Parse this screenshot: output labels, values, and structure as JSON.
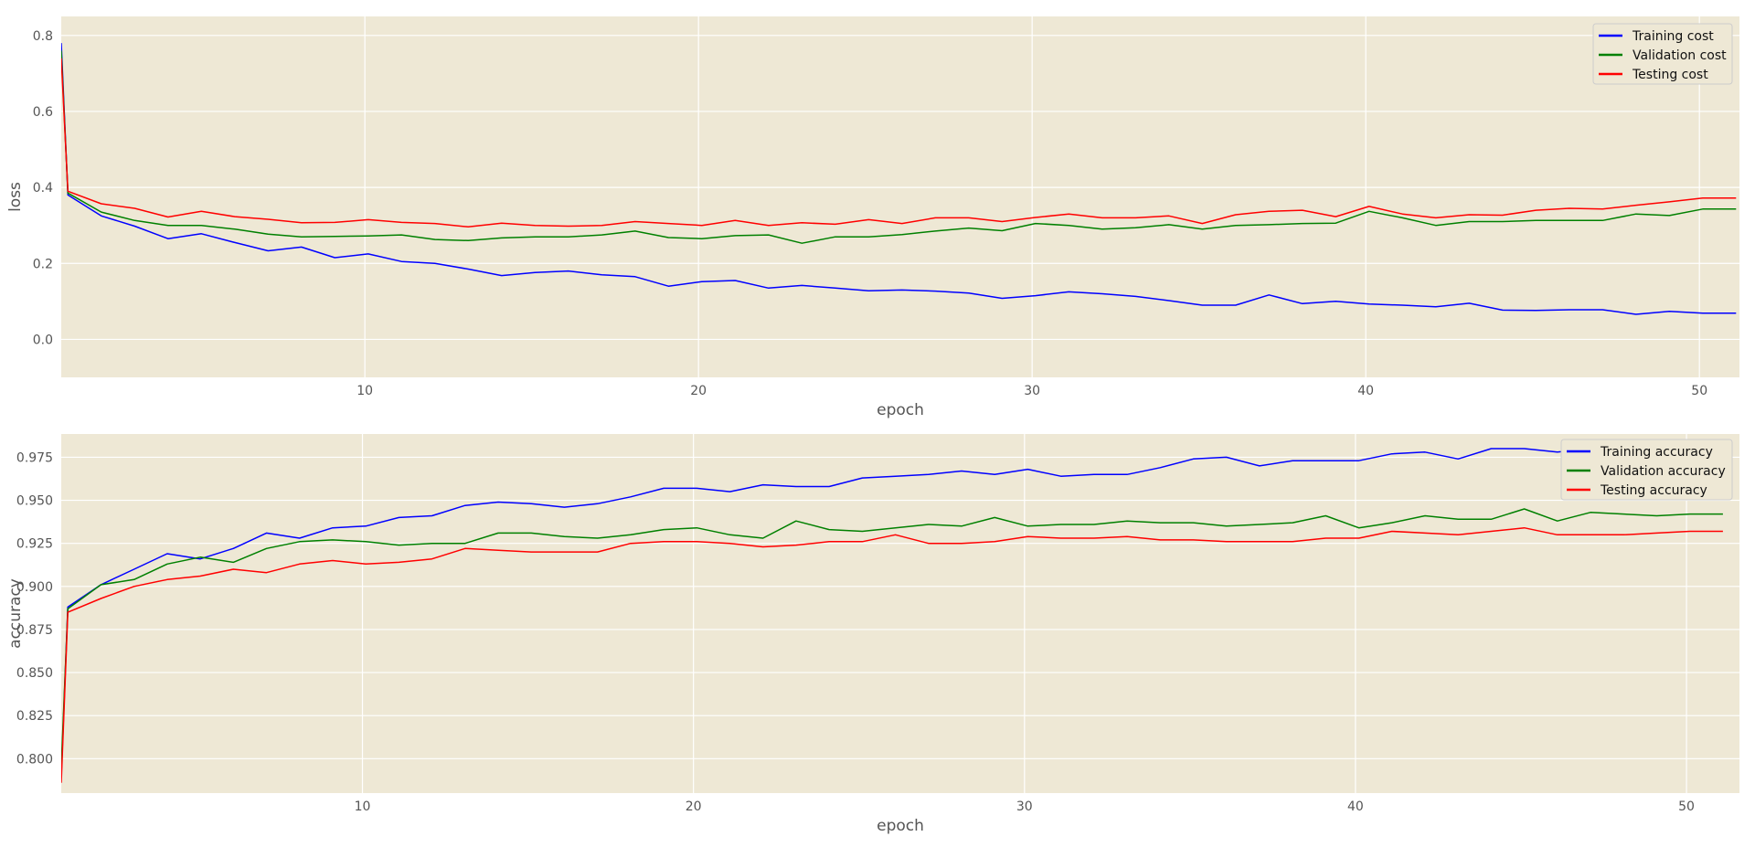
{
  "colors": {
    "plot_background": "#eee8d5",
    "grid": "#ffffff",
    "tick_text": "#555555",
    "training": "#0000ff",
    "validation": "#008000",
    "testing": "#ff0000"
  },
  "chart_data": [
    {
      "type": "line",
      "xlabel": "epoch",
      "ylabel": "loss",
      "xlim": [
        0.9,
        51.2
      ],
      "ylim": [
        -0.1,
        0.85
      ],
      "xticks": [
        10,
        20,
        30,
        40,
        50
      ],
      "yticks": [
        0.0,
        0.2,
        0.4,
        0.6,
        0.8
      ],
      "ytick_decimals": 1,
      "grid": true,
      "legend_position": "top-right",
      "x": [
        0.9,
        1.1,
        2.1,
        3.1,
        4.1,
        5.1,
        6.1,
        7.1,
        8.1,
        9.1,
        10.1,
        11.1,
        12.1,
        13.1,
        14.1,
        15.1,
        16.1,
        17.1,
        18.1,
        19.1,
        20.1,
        21.1,
        22.1,
        23.1,
        24.1,
        25.1,
        26.1,
        27.1,
        28.1,
        29.1,
        30.1,
        31.1,
        32.1,
        33.1,
        34.1,
        35.1,
        36.1,
        37.1,
        38.1,
        39.1,
        40.1,
        41.1,
        42.1,
        43.1,
        44.1,
        45.1,
        46.1,
        47.1,
        48.1,
        49.1,
        50.1,
        51.1
      ],
      "series": [
        {
          "name": "Training cost",
          "color": "#0000ff",
          "values": [
            0.78,
            0.38,
            0.325,
            0.298,
            0.265,
            0.278,
            0.255,
            0.233,
            0.243,
            0.215,
            0.225,
            0.205,
            0.2,
            0.185,
            0.168,
            0.176,
            0.18,
            0.17,
            0.165,
            0.14,
            0.152,
            0.155,
            0.135,
            0.142,
            0.135,
            0.128,
            0.13,
            0.127,
            0.122,
            0.108,
            0.115,
            0.125,
            0.12,
            0.113,
            0.102,
            0.09,
            0.09,
            0.117,
            0.094,
            0.1,
            0.093,
            0.09,
            0.086,
            0.095,
            0.077,
            0.076,
            0.078,
            0.078,
            0.066,
            0.074,
            0.069,
            0.069
          ]
        },
        {
          "name": "Validation cost",
          "color": "#008000",
          "values": [
            0.76,
            0.385,
            0.335,
            0.313,
            0.3,
            0.3,
            0.29,
            0.277,
            0.27,
            0.271,
            0.272,
            0.275,
            0.263,
            0.26,
            0.267,
            0.27,
            0.27,
            0.275,
            0.285,
            0.268,
            0.265,
            0.273,
            0.275,
            0.253,
            0.27,
            0.27,
            0.276,
            0.285,
            0.293,
            0.286,
            0.305,
            0.3,
            0.29,
            0.294,
            0.302,
            0.29,
            0.3,
            0.302,
            0.305,
            0.306,
            0.337,
            0.32,
            0.3,
            0.31,
            0.31,
            0.313,
            0.313,
            0.313,
            0.33,
            0.326,
            0.343,
            0.343
          ]
        },
        {
          "name": "Testing cost",
          "color": "#ff0000",
          "values": [
            0.74,
            0.39,
            0.357,
            0.345,
            0.322,
            0.337,
            0.323,
            0.316,
            0.307,
            0.308,
            0.315,
            0.308,
            0.305,
            0.296,
            0.306,
            0.3,
            0.298,
            0.3,
            0.31,
            0.305,
            0.3,
            0.313,
            0.3,
            0.307,
            0.303,
            0.315,
            0.305,
            0.32,
            0.32,
            0.31,
            0.321,
            0.33,
            0.32,
            0.32,
            0.325,
            0.305,
            0.328,
            0.337,
            0.34,
            0.323,
            0.35,
            0.33,
            0.32,
            0.328,
            0.327,
            0.34,
            0.345,
            0.343,
            0.353,
            0.362,
            0.372,
            0.372
          ]
        }
      ]
    },
    {
      "type": "line",
      "xlabel": "epoch",
      "ylabel": "accuracy",
      "xlim": [
        0.9,
        51.6
      ],
      "ylim": [
        0.78,
        0.9885
      ],
      "xticks": [
        10,
        20,
        30,
        40,
        50
      ],
      "yticks": [
        0.8,
        0.825,
        0.85,
        0.875,
        0.9,
        0.925,
        0.95,
        0.975
      ],
      "ytick_decimals": 3,
      "grid": true,
      "legend_position": "top-right",
      "x": [
        0.9,
        1.1,
        2.1,
        3.1,
        4.1,
        5.1,
        6.1,
        7.1,
        8.1,
        9.1,
        10.1,
        11.1,
        12.1,
        13.1,
        14.1,
        15.1,
        16.1,
        17.1,
        18.1,
        19.1,
        20.1,
        21.1,
        22.1,
        23.1,
        24.1,
        25.1,
        26.1,
        27.1,
        28.1,
        29.1,
        30.1,
        31.1,
        32.1,
        33.1,
        34.1,
        35.1,
        36.1,
        37.1,
        38.1,
        39.1,
        40.1,
        41.1,
        42.1,
        43.1,
        44.1,
        45.1,
        46.1,
        47.1,
        48.1,
        49.1,
        50.1,
        51.1
      ],
      "series": [
        {
          "name": "Training accuracy",
          "color": "#0000ff",
          "values": [
            0.79,
            0.888,
            0.901,
            0.91,
            0.919,
            0.916,
            0.922,
            0.931,
            0.928,
            0.934,
            0.935,
            0.94,
            0.941,
            0.947,
            0.949,
            0.948,
            0.946,
            0.948,
            0.952,
            0.957,
            0.957,
            0.955,
            0.959,
            0.958,
            0.958,
            0.963,
            0.964,
            0.965,
            0.967,
            0.965,
            0.968,
            0.964,
            0.965,
            0.965,
            0.969,
            0.974,
            0.975,
            0.97,
            0.973,
            0.973,
            0.973,
            0.977,
            0.978,
            0.974,
            0.98,
            0.98,
            0.978,
            0.98,
            0.979,
            0.978,
            0.977,
            0.977
          ]
        },
        {
          "name": "Validation accuracy",
          "color": "#008000",
          "values": [
            0.795,
            0.887,
            0.901,
            0.904,
            0.913,
            0.917,
            0.914,
            0.922,
            0.926,
            0.927,
            0.926,
            0.924,
            0.925,
            0.925,
            0.931,
            0.931,
            0.929,
            0.928,
            0.93,
            0.933,
            0.934,
            0.93,
            0.928,
            0.938,
            0.933,
            0.932,
            0.934,
            0.936,
            0.935,
            0.94,
            0.935,
            0.936,
            0.936,
            0.938,
            0.937,
            0.937,
            0.935,
            0.936,
            0.937,
            0.941,
            0.934,
            0.937,
            0.941,
            0.939,
            0.939,
            0.945,
            0.938,
            0.943,
            0.942,
            0.941,
            0.942,
            0.942
          ]
        },
        {
          "name": "Testing accuracy",
          "color": "#ff0000",
          "values": [
            0.786,
            0.885,
            0.893,
            0.9,
            0.904,
            0.906,
            0.91,
            0.908,
            0.913,
            0.915,
            0.913,
            0.914,
            0.916,
            0.922,
            0.921,
            0.92,
            0.92,
            0.92,
            0.925,
            0.926,
            0.926,
            0.925,
            0.923,
            0.924,
            0.926,
            0.926,
            0.93,
            0.925,
            0.925,
            0.926,
            0.929,
            0.928,
            0.928,
            0.929,
            0.927,
            0.927,
            0.926,
            0.926,
            0.926,
            0.928,
            0.928,
            0.932,
            0.931,
            0.93,
            0.932,
            0.934,
            0.93,
            0.93,
            0.93,
            0.931,
            0.932,
            0.932
          ]
        }
      ]
    }
  ]
}
